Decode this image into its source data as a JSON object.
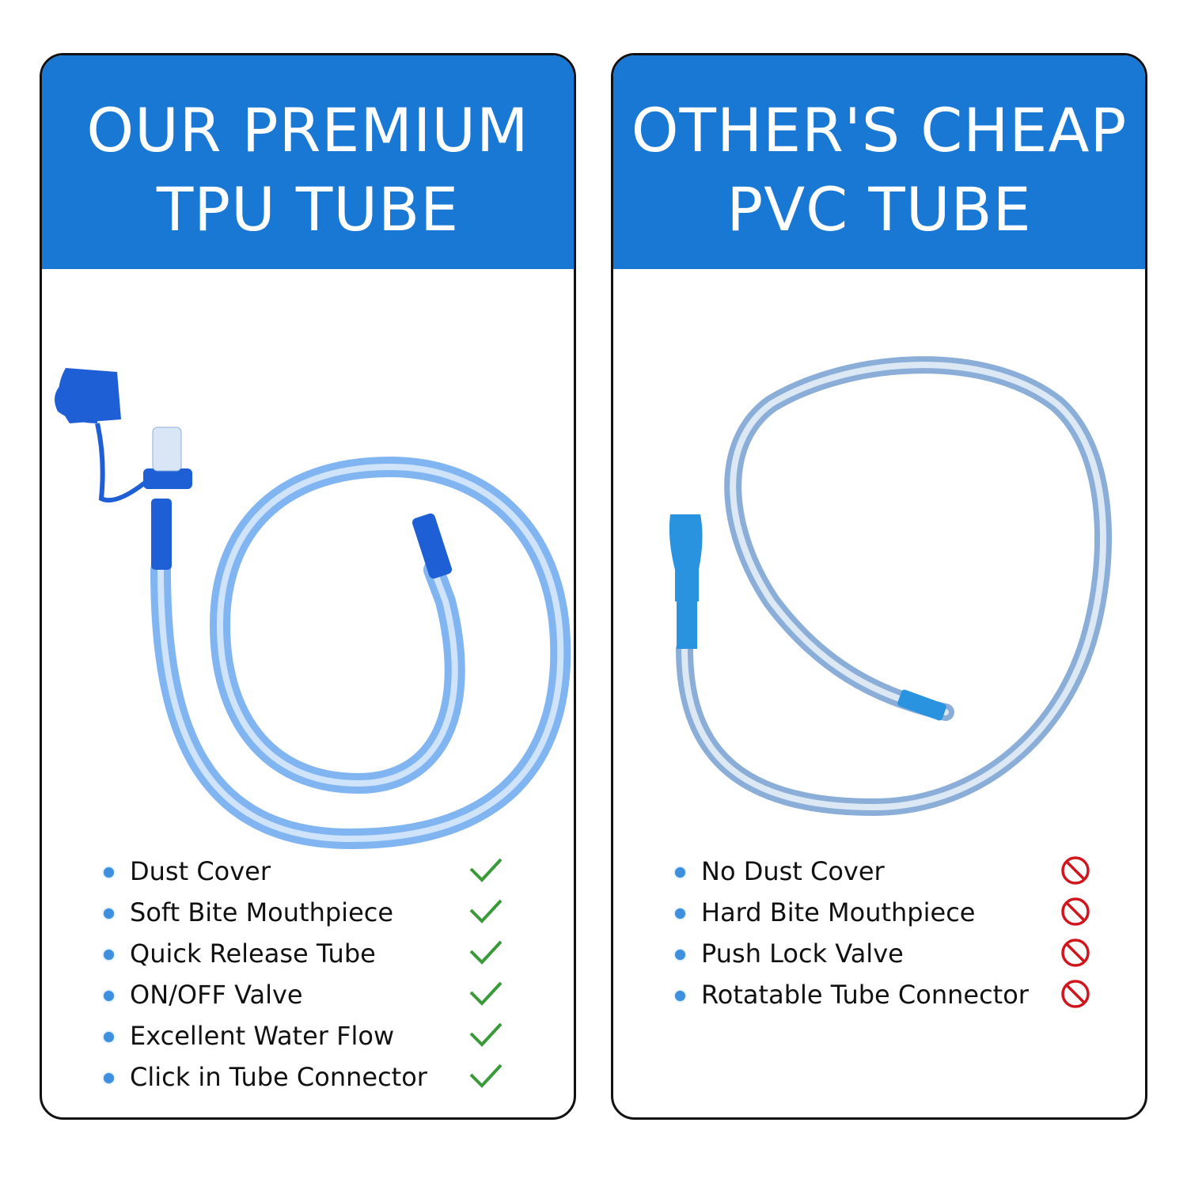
{
  "left_panel": {
    "title_line1": "OUR PREMIUM",
    "title_line2": "TPU TUBE",
    "features": [
      {
        "label": "Dust Cover",
        "icon": "check-icon"
      },
      {
        "label": "Soft Bite Mouthpiece",
        "icon": "check-icon"
      },
      {
        "label": "Quick Release Tube",
        "icon": "check-icon"
      },
      {
        "label": "ON/OFF Valve",
        "icon": "check-icon"
      },
      {
        "label": "Excellent Water Flow",
        "icon": "check-icon"
      },
      {
        "label": "Click in Tube Connector",
        "icon": "check-icon"
      }
    ]
  },
  "right_panel": {
    "title_line1": "OTHER'S CHEAP",
    "title_line2": "PVC TUBE",
    "features": [
      {
        "label": "No Dust Cover",
        "icon": "prohibited-icon"
      },
      {
        "label": "Hard Bite Mouthpiece",
        "icon": "prohibited-icon"
      },
      {
        "label": "Push Lock Valve",
        "icon": "prohibited-icon"
      },
      {
        "label": "Rotatable Tube Connector",
        "icon": "prohibited-icon"
      }
    ]
  },
  "colors": {
    "header": "#1878d4",
    "check": "#3a9a3a",
    "prohibited": "#d0161c",
    "bullet": "#3d8fe0"
  }
}
